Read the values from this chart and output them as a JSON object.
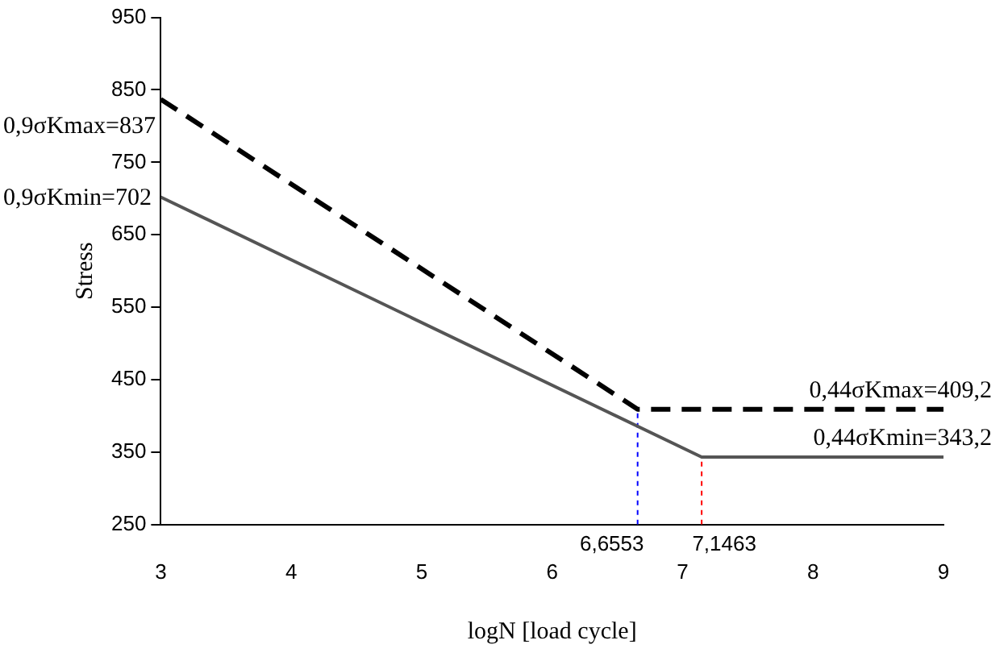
{
  "chart_data": {
    "type": "line",
    "xlabel": "logN [load cycle]",
    "ylabel": "Stress",
    "xlim": [
      3,
      9
    ],
    "xticks": [
      3,
      4,
      5,
      6,
      7,
      8,
      9
    ],
    "ylim": [
      250,
      950
    ],
    "yticks": [
      250,
      350,
      450,
      550,
      650,
      750,
      850,
      950
    ],
    "grid": false,
    "legend": false,
    "marker": "none",
    "series": [
      {
        "x": [
          3,
          6.6553,
          9
        ],
        "values": [
          837,
          409.2,
          409.2
        ],
        "color": "#000000",
        "line_style": "dashed"
      },
      {
        "x": [
          3,
          7.1463,
          9
        ],
        "values": [
          702,
          343.2,
          343.2
        ],
        "color": "#555555",
        "line_style": "solid"
      },
      {
        "x": [
          6.6553,
          6.6553
        ],
        "values": [
          250,
          409.2
        ],
        "color": "#0000ff",
        "line_style": "dashed"
      },
      {
        "x": [
          7.1463,
          7.1463
        ],
        "values": [
          250,
          343.2
        ],
        "color": "#ff0000",
        "line_style": "dashed"
      }
    ],
    "annotations": [
      {
        "text": "0,9σKmax=837",
        "x": 3,
        "y": 837
      },
      {
        "text": "0,9σKmin=702",
        "x": 3,
        "y": 702
      },
      {
        "text": "0,44σKmax=409,2",
        "x": 9,
        "y": 409.2
      },
      {
        "text": "0,44σKmin=343,2",
        "x": 9,
        "y": 343.2
      },
      {
        "text": "6,6553",
        "x": 6.6553,
        "y": 250
      },
      {
        "text": "7,1463",
        "x": 7.1463,
        "y": 250
      }
    ]
  }
}
